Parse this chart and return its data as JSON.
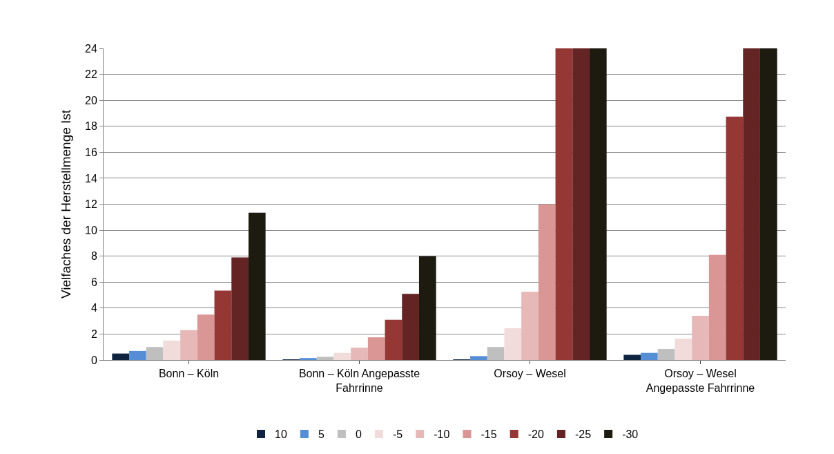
{
  "chart_data": {
    "type": "bar",
    "ylabel": "Vielfaches der Herstellmenge Ist",
    "categories": [
      "Bonn – Köln",
      "Bonn – Köln Angepasste\nFahrrinne",
      "Orsoy – Wesel",
      "Orsoy – Wesel\nAngepasste Fahrrinne"
    ],
    "series": [
      {
        "name": "10",
        "color": "#10243f",
        "values": [
          0.5,
          0.05,
          0.05,
          0.4
        ]
      },
      {
        "name": "5",
        "color": "#558ed5",
        "values": [
          0.7,
          0.15,
          0.3,
          0.55
        ]
      },
      {
        "name": "0",
        "color": "#bfbfbf",
        "values": [
          1.0,
          0.25,
          1.0,
          0.85
        ]
      },
      {
        "name": "-5",
        "color": "#f2dcdb",
        "values": [
          1.5,
          0.55,
          2.45,
          1.65
        ]
      },
      {
        "name": "-10",
        "color": "#e6b9b8",
        "values": [
          2.3,
          0.95,
          5.25,
          3.4
        ]
      },
      {
        "name": "-15",
        "color": "#d99694",
        "values": [
          3.5,
          1.75,
          12.0,
          8.1
        ]
      },
      {
        "name": "-20",
        "color": "#953735",
        "values": [
          5.35,
          3.1,
          24,
          18.75
        ]
      },
      {
        "name": "-25",
        "color": "#632423",
        "values": [
          7.9,
          5.1,
          24,
          24
        ]
      },
      {
        "name": "-30",
        "color": "#1d1b10",
        "values": [
          11.35,
          8.0,
          24,
          24
        ]
      }
    ],
    "ylim": [
      0,
      24
    ],
    "yticks": [
      0,
      2,
      4,
      6,
      8,
      10,
      12,
      14,
      16,
      18,
      20,
      22,
      24
    ],
    "grid": "y",
    "legend": "bottom"
  }
}
